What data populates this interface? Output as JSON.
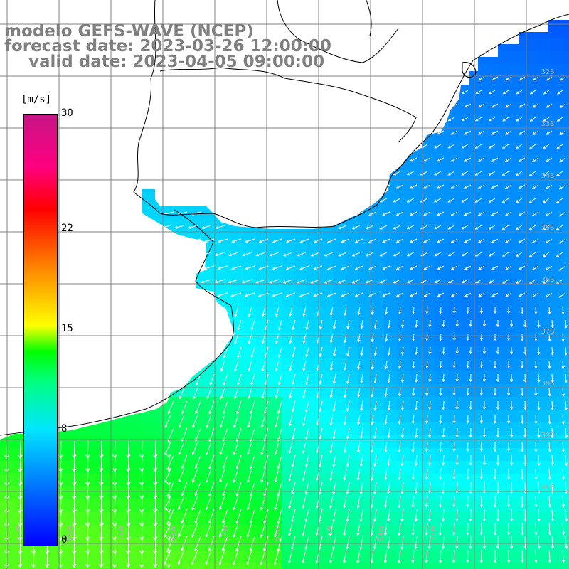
{
  "header": {
    "line1": "modelo GEFS-WAVE (NCEP)",
    "line2": "forecast date: 2023-03-26 12:00:00",
    "line3": "valid date: 2023-04-05 09:00:00"
  },
  "legend": {
    "units": "[m/s]",
    "min": 0,
    "max": 30,
    "ticks": [
      "30",
      "22",
      "15",
      "8",
      "0"
    ],
    "tick_values": [
      30,
      22,
      15,
      8,
      0
    ],
    "colors": [
      "#0000ff",
      "#0080ff",
      "#00e6ff",
      "#00ff80",
      "#00ff00",
      "#ffff00",
      "#ff8000",
      "#ff0000",
      "#ff0080",
      "#c71585"
    ]
  },
  "map": {
    "lat_labels": [
      "32S",
      "33S",
      "34S",
      "35S",
      "36S",
      "37S",
      "38S",
      "39S",
      "40S"
    ],
    "lon_labels": [
      "61W",
      "60W",
      "59W",
      "58W",
      "57W",
      "56W",
      "55W",
      "54W",
      "53W"
    ],
    "land_color": "#ffffff",
    "arrow_color": "#ffffff",
    "grid_color": "#808080"
  }
}
